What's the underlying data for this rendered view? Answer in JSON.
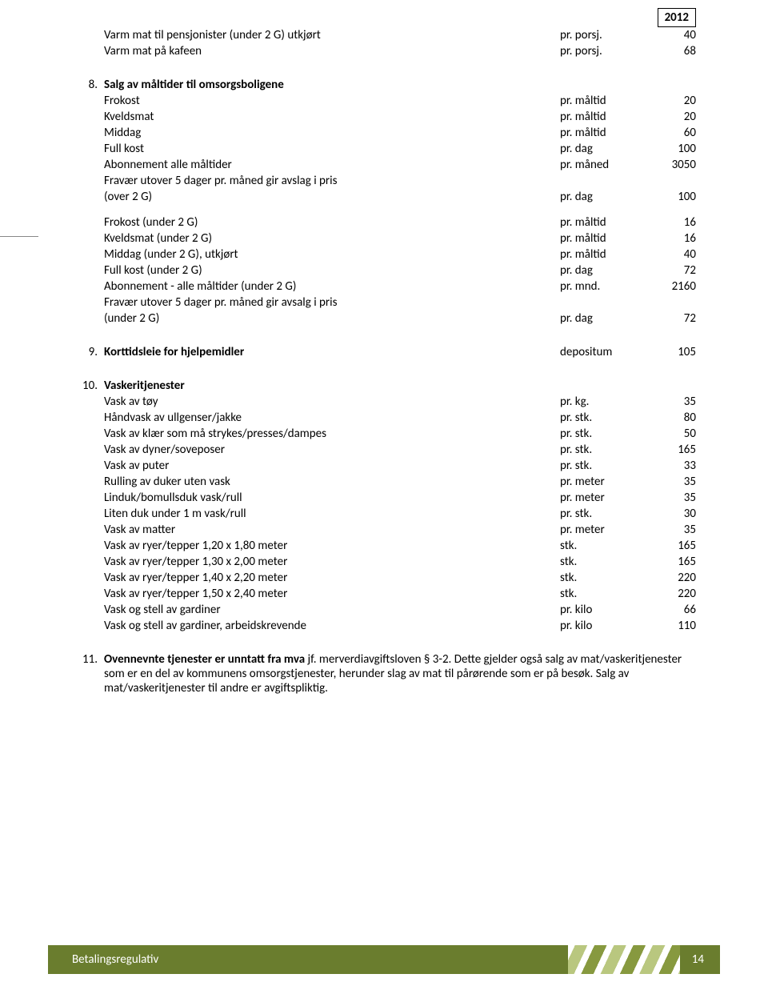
{
  "year": "2012",
  "introRows": [
    {
      "desc": "Varm mat til pensjonister (under 2 G) utkjørt",
      "unit": "pr. porsj.",
      "val": "40"
    },
    {
      "desc": "Varm mat på kafeen",
      "unit": "pr. porsj.",
      "val": "68"
    }
  ],
  "section8": {
    "num": "8.",
    "title": "Salg av måltider til omsorgsboligene",
    "rows1": [
      {
        "desc": "Frokost",
        "unit": "pr. måltid",
        "val": "20"
      },
      {
        "desc": "Kveldsmat",
        "unit": "pr. måltid",
        "val": "20"
      },
      {
        "desc": "Middag",
        "unit": "pr. måltid",
        "val": "60"
      },
      {
        "desc": "Full kost",
        "unit": "pr. dag",
        "val": "100"
      },
      {
        "desc": "Abonnement alle måltider",
        "unit": "pr. måned",
        "val": "3050"
      },
      {
        "desc": "Fravær utover 5 dager pr. måned gir avslag i pris",
        "unit": "",
        "val": ""
      },
      {
        "desc": "(over 2 G)",
        "unit": "pr. dag",
        "val": "100"
      }
    ],
    "rows2": [
      {
        "desc": "Frokost (under 2 G)",
        "unit": "pr. måltid",
        "val": "16"
      },
      {
        "desc": "Kveldsmat (under 2 G)",
        "unit": "pr. måltid",
        "val": "16"
      },
      {
        "desc": "Middag (under 2 G), utkjørt",
        "unit": "pr. måltid",
        "val": "40"
      },
      {
        "desc": "Full kost (under 2 G)",
        "unit": "pr. dag",
        "val": "72"
      },
      {
        "desc": "Abonnement - alle måltider (under 2 G)",
        "unit": "pr. mnd.",
        "val": "2160"
      },
      {
        "desc": "Fravær utover 5 dager pr. måned gir avsalg i pris",
        "unit": "",
        "val": ""
      },
      {
        "desc": "(under 2 G)",
        "unit": "pr. dag",
        "val": "72"
      }
    ]
  },
  "section9": {
    "num": "9.",
    "title": "Korttidsleie for hjelpemidler",
    "unit": "depositum",
    "val": "105"
  },
  "section10": {
    "num": "10.",
    "title": "Vaskeritjenester",
    "rows": [
      {
        "desc": "Vask av tøy",
        "unit": "pr. kg.",
        "val": "35"
      },
      {
        "desc": "Håndvask av ullgenser/jakke",
        "unit": "pr. stk.",
        "val": "80"
      },
      {
        "desc": "Vask av klær som må strykes/presses/dampes",
        "unit": "pr. stk.",
        "val": "50"
      },
      {
        "desc": "Vask av dyner/soveposer",
        "unit": "pr. stk.",
        "val": "165"
      },
      {
        "desc": "Vask av puter",
        "unit": "pr. stk.",
        "val": "33"
      },
      {
        "desc": "Rulling av duker uten vask",
        "unit": "pr. meter",
        "val": "35"
      },
      {
        "desc": "Linduk/bomullsduk vask/rull",
        "unit": "pr. meter",
        "val": "35"
      },
      {
        "desc": "Liten duk under 1 m vask/rull",
        "unit": "pr. stk.",
        "val": "30"
      },
      {
        "desc": "Vask av matter",
        "unit": "pr. meter",
        "val": "35"
      },
      {
        "desc": "Vask av ryer/tepper 1,20 x 1,80 meter",
        "unit": "stk.",
        "val": "165"
      },
      {
        "desc": "Vask av ryer/tepper 1,30 x 2,00 meter",
        "unit": "stk.",
        "val": "165"
      },
      {
        "desc": "Vask av ryer/tepper 1,40 x 2,20 meter",
        "unit": "stk.",
        "val": "220"
      },
      {
        "desc": "Vask av ryer/tepper 1,50 x 2,40 meter",
        "unit": "stk.",
        "val": "220"
      },
      {
        "desc": "Vask og stell av gardiner",
        "unit": "pr. kilo",
        "val": "66"
      },
      {
        "desc": "Vask og stell av gardiner, arbeidskrevende",
        "unit": "pr. kilo",
        "val": "110"
      }
    ]
  },
  "section11": {
    "num": "11.",
    "bold": "Ovennevnte tjenester er unntatt fra mva",
    "rest": " jf. merverdiavgiftsloven § 3-2. Dette gjelder også salg av mat/vaskeritjenester som er en del av kommunens omsorgstjenester, herunder slag av mat til pårørende som er på besøk. Salg av mat/vaskeritjenester til andre er avgiftspliktig."
  },
  "footer": {
    "title": "Betalingsregulativ",
    "page": "14"
  }
}
